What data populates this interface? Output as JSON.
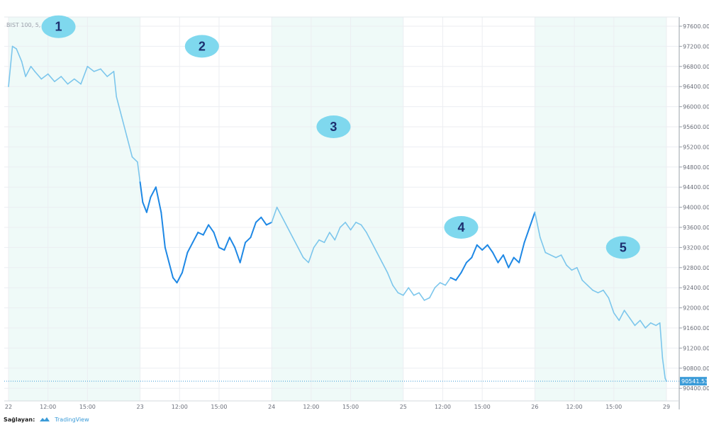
{
  "chart_data": {
    "type": "line",
    "symbol_label": "BIST 100, 5, BIST",
    "ylim": [
      90200,
      97800
    ],
    "y_ticks": [
      "97600.00",
      "97200.00",
      "96800.00",
      "96400.00",
      "96000.00",
      "95600.00",
      "95200.00",
      "94800.00",
      "94400.00",
      "94000.00",
      "93600.00",
      "93200.00",
      "92800.00",
      "92400.00",
      "92000.00",
      "91600.00",
      "91200.00",
      "90800.00",
      "90400.00"
    ],
    "x_ticks": [
      {
        "label": "22",
        "t": 0
      },
      {
        "label": "12:00",
        "t": 0.3
      },
      {
        "label": "15:00",
        "t": 0.6
      },
      {
        "label": "23",
        "t": 1.0
      },
      {
        "label": "12:00",
        "t": 1.3
      },
      {
        "label": "15:00",
        "t": 1.6
      },
      {
        "label": "24",
        "t": 2.0
      },
      {
        "label": "12:00",
        "t": 2.3
      },
      {
        "label": "15:00",
        "t": 2.6
      },
      {
        "label": "25",
        "t": 3.0
      },
      {
        "label": "12:00",
        "t": 3.3
      },
      {
        "label": "15:00",
        "t": 3.6
      },
      {
        "label": "26",
        "t": 4.0
      },
      {
        "label": "12:00",
        "t": 4.3
      },
      {
        "label": "15:00",
        "t": 4.6
      },
      {
        "label": "29",
        "t": 5.0
      }
    ],
    "last_price_label": "90541.53",
    "series": [
      {
        "color_light": "#7cc6ec",
        "color_dark": "#1e88e5",
        "points": [
          [
            0.0,
            96400
          ],
          [
            0.03,
            97200
          ],
          [
            0.06,
            97150
          ],
          [
            0.1,
            96900
          ],
          [
            0.13,
            96600
          ],
          [
            0.17,
            96800
          ],
          [
            0.2,
            96700
          ],
          [
            0.25,
            96550
          ],
          [
            0.3,
            96650
          ],
          [
            0.35,
            96500
          ],
          [
            0.4,
            96600
          ],
          [
            0.45,
            96450
          ],
          [
            0.5,
            96550
          ],
          [
            0.55,
            96450
          ],
          [
            0.6,
            96800
          ],
          [
            0.65,
            96700
          ],
          [
            0.7,
            96750
          ],
          [
            0.75,
            96600
          ],
          [
            0.8,
            96700
          ],
          [
            0.82,
            96200
          ],
          [
            0.86,
            95800
          ],
          [
            0.9,
            95400
          ],
          [
            0.94,
            95000
          ],
          [
            0.98,
            94900
          ],
          [
            1.0,
            94500
          ],
          [
            1.02,
            94100
          ],
          [
            1.05,
            93900
          ],
          [
            1.08,
            94200
          ],
          [
            1.12,
            94400
          ],
          [
            1.16,
            93900
          ],
          [
            1.19,
            93200
          ],
          [
            1.22,
            92900
          ],
          [
            1.25,
            92600
          ],
          [
            1.28,
            92500
          ],
          [
            1.32,
            92700
          ],
          [
            1.36,
            93100
          ],
          [
            1.4,
            93300
          ],
          [
            1.44,
            93500
          ],
          [
            1.48,
            93450
          ],
          [
            1.52,
            93650
          ],
          [
            1.56,
            93500
          ],
          [
            1.6,
            93200
          ],
          [
            1.64,
            93150
          ],
          [
            1.68,
            93400
          ],
          [
            1.72,
            93200
          ],
          [
            1.76,
            92900
          ],
          [
            1.8,
            93300
          ],
          [
            1.84,
            93400
          ],
          [
            1.88,
            93700
          ],
          [
            1.92,
            93800
          ],
          [
            1.96,
            93650
          ],
          [
            2.0,
            93700
          ],
          [
            2.04,
            94000
          ],
          [
            2.08,
            93800
          ],
          [
            2.12,
            93600
          ],
          [
            2.16,
            93400
          ],
          [
            2.2,
            93200
          ],
          [
            2.24,
            93000
          ],
          [
            2.28,
            92900
          ],
          [
            2.32,
            93200
          ],
          [
            2.36,
            93350
          ],
          [
            2.4,
            93300
          ],
          [
            2.44,
            93500
          ],
          [
            2.48,
            93350
          ],
          [
            2.52,
            93600
          ],
          [
            2.56,
            93700
          ],
          [
            2.6,
            93550
          ],
          [
            2.64,
            93700
          ],
          [
            2.68,
            93650
          ],
          [
            2.72,
            93500
          ],
          [
            2.76,
            93300
          ],
          [
            2.8,
            93100
          ],
          [
            2.84,
            92900
          ],
          [
            2.88,
            92700
          ],
          [
            2.92,
            92450
          ],
          [
            2.96,
            92300
          ],
          [
            3.0,
            92250
          ],
          [
            3.04,
            92400
          ],
          [
            3.08,
            92250
          ],
          [
            3.12,
            92300
          ],
          [
            3.16,
            92150
          ],
          [
            3.2,
            92200
          ],
          [
            3.24,
            92400
          ],
          [
            3.28,
            92500
          ],
          [
            3.32,
            92450
          ],
          [
            3.36,
            92600
          ],
          [
            3.4,
            92550
          ],
          [
            3.44,
            92700
          ],
          [
            3.48,
            92900
          ],
          [
            3.52,
            93000
          ],
          [
            3.56,
            93250
          ],
          [
            3.6,
            93150
          ],
          [
            3.64,
            93250
          ],
          [
            3.68,
            93100
          ],
          [
            3.72,
            92900
          ],
          [
            3.76,
            93050
          ],
          [
            3.8,
            92800
          ],
          [
            3.84,
            93000
          ],
          [
            3.88,
            92900
          ],
          [
            3.92,
            93300
          ],
          [
            3.96,
            93600
          ],
          [
            4.0,
            93900
          ],
          [
            4.04,
            93400
          ],
          [
            4.08,
            93100
          ],
          [
            4.12,
            93050
          ],
          [
            4.16,
            93000
          ],
          [
            4.2,
            93050
          ],
          [
            4.24,
            92850
          ],
          [
            4.28,
            92750
          ],
          [
            4.32,
            92800
          ],
          [
            4.36,
            92550
          ],
          [
            4.4,
            92450
          ],
          [
            4.44,
            92350
          ],
          [
            4.48,
            92300
          ],
          [
            4.52,
            92350
          ],
          [
            4.56,
            92200
          ],
          [
            4.6,
            91900
          ],
          [
            4.64,
            91750
          ],
          [
            4.68,
            91950
          ],
          [
            4.72,
            91800
          ],
          [
            4.76,
            91650
          ],
          [
            4.8,
            91750
          ],
          [
            4.84,
            91600
          ],
          [
            4.88,
            91700
          ],
          [
            4.92,
            91650
          ],
          [
            4.95,
            91700
          ],
          [
            4.97,
            91000
          ],
          [
            4.99,
            90600
          ],
          [
            5.0,
            90541.53
          ]
        ],
        "dark_ranges": [
          [
            1.0,
            2.0
          ],
          [
            3.35,
            4.0
          ]
        ]
      }
    ]
  },
  "markers": [
    {
      "label": "1",
      "t": 0.38,
      "price": 97590
    },
    {
      "label": "2",
      "t": 1.47,
      "price": 97200
    },
    {
      "label": "3",
      "t": 2.47,
      "price": 95600
    },
    {
      "label": "4",
      "t": 3.44,
      "price": 93600
    },
    {
      "label": "5",
      "t": 4.67,
      "price": 93200
    }
  ],
  "footer": {
    "provider_label": "Sağlayan:",
    "provider_name": "TradingView"
  }
}
